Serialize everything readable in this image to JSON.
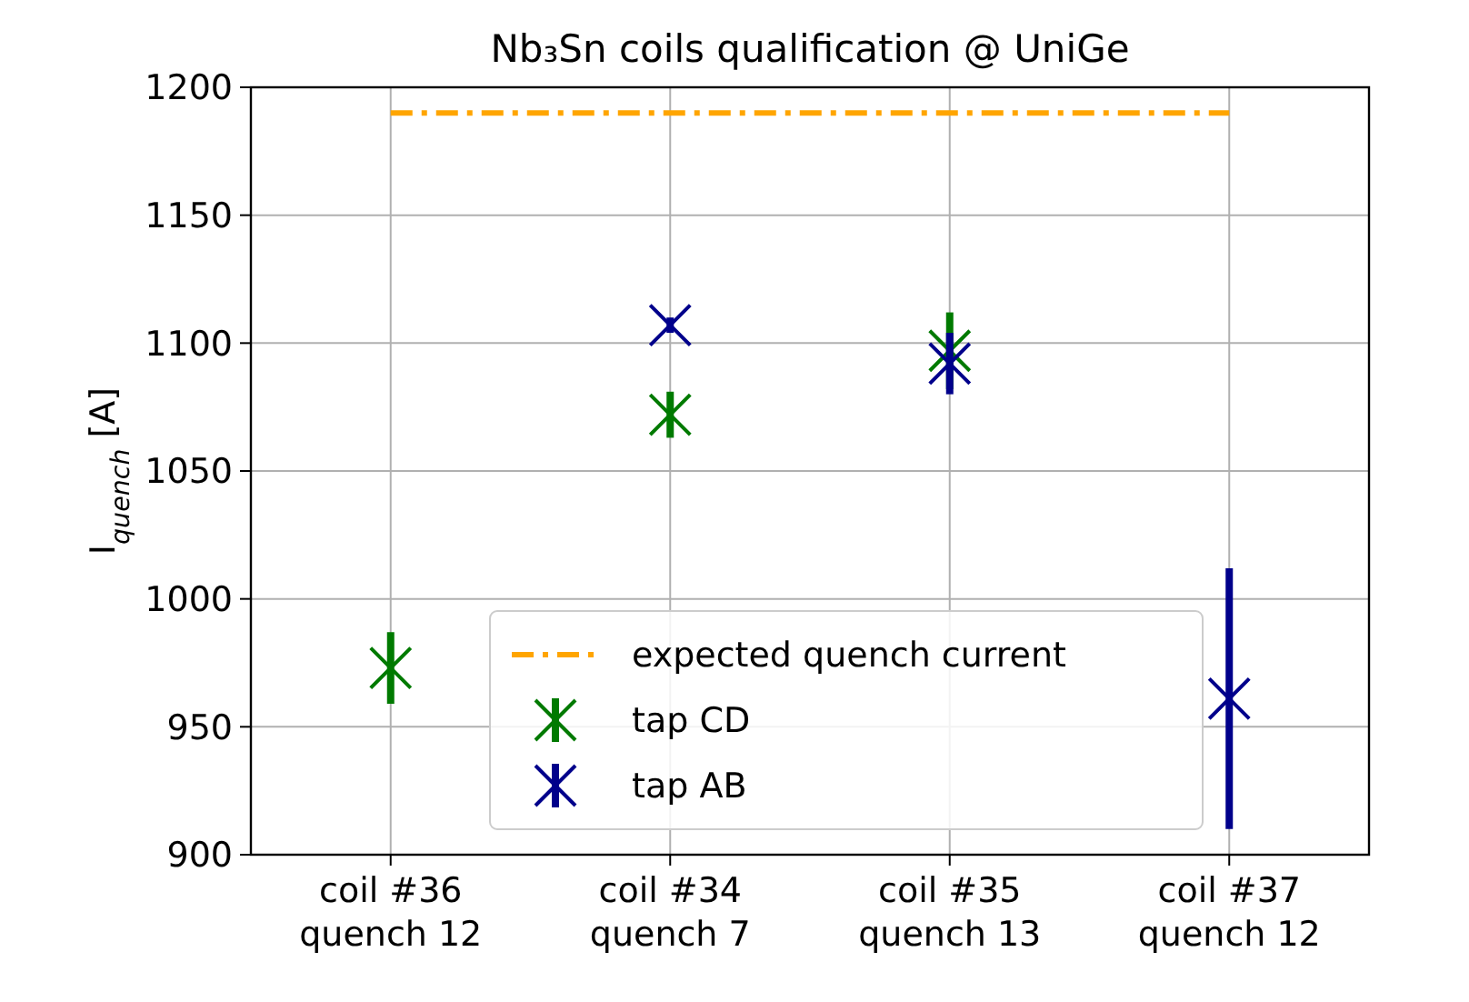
{
  "chart_data": {
    "type": "scatter",
    "title": "Nb₃Sn coils qualification @ UniGe",
    "ylabel": "I$_{quench}$ [A]",
    "categories": [
      "coil #36\nquench 12",
      "coil #34\nquench 7",
      "coil #35\nquench 13",
      "coil #37\nquench 12"
    ],
    "series": [
      {
        "name": "tap CD",
        "color": "#007a00",
        "values": [
          973,
          1072,
          1097,
          null
        ],
        "errors": [
          14,
          9,
          15,
          null
        ]
      },
      {
        "name": "tap AB",
        "color": "#00008b",
        "values": [
          null,
          1107,
          1092,
          961
        ],
        "errors": [
          null,
          3,
          12,
          51
        ]
      }
    ],
    "ref_lines": [
      {
        "axis": "y",
        "value": 1190,
        "label": "expected quench current",
        "color": "#ffa500",
        "line_style": "dashdot"
      }
    ],
    "ylim": [
      900,
      1200
    ],
    "yticks": [
      900,
      950,
      1000,
      1050,
      1100,
      1150,
      1200
    ],
    "grid": true,
    "legend": "bottom",
    "marker": "cross"
  }
}
